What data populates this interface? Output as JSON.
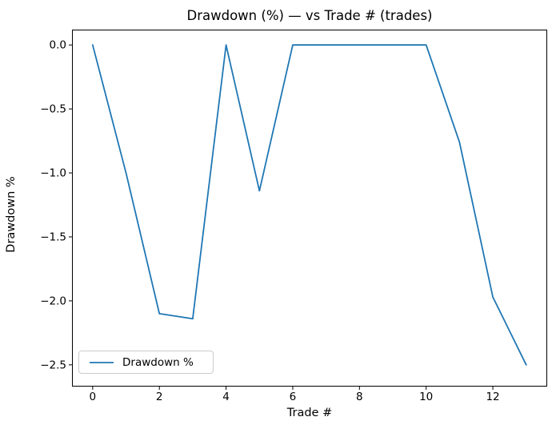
{
  "figure": {
    "background": "#ffffff"
  },
  "chart_data": {
    "type": "line",
    "title": "Drawdown (%) — vs Trade # (trades)",
    "xlabel": "Trade #",
    "ylabel": "Drawdown %",
    "legend": [
      "Drawdown %"
    ],
    "legend_position": "lower left",
    "x": [
      0,
      1,
      2,
      3,
      4,
      5,
      6,
      7,
      8,
      9,
      10,
      11,
      12,
      13
    ],
    "series": [
      {
        "name": "Drawdown %",
        "color": "#1f77b4",
        "values": [
          0.0,
          -1.0,
          -2.1,
          -2.14,
          0.0,
          -1.14,
          0.0,
          0.0,
          0.0,
          0.0,
          0.0,
          -0.76,
          -1.97,
          -2.5
        ]
      }
    ],
    "xlim": [
      -0.62,
      13.63
    ],
    "ylim": [
      -2.67,
      0.12
    ],
    "xticks": {
      "values": [
        0,
        2,
        4,
        6,
        8,
        10,
        12
      ],
      "labels": [
        "0",
        "2",
        "4",
        "6",
        "8",
        "10",
        "12"
      ]
    },
    "yticks": {
      "values": [
        0.0,
        -0.5,
        -1.0,
        -1.5,
        -2.0,
        -2.5
      ],
      "labels": [
        "0.0",
        "−0.5",
        "−1.0",
        "−1.5",
        "−2.0",
        "−2.5"
      ]
    },
    "grid": false,
    "axis_color": "#000000"
  }
}
